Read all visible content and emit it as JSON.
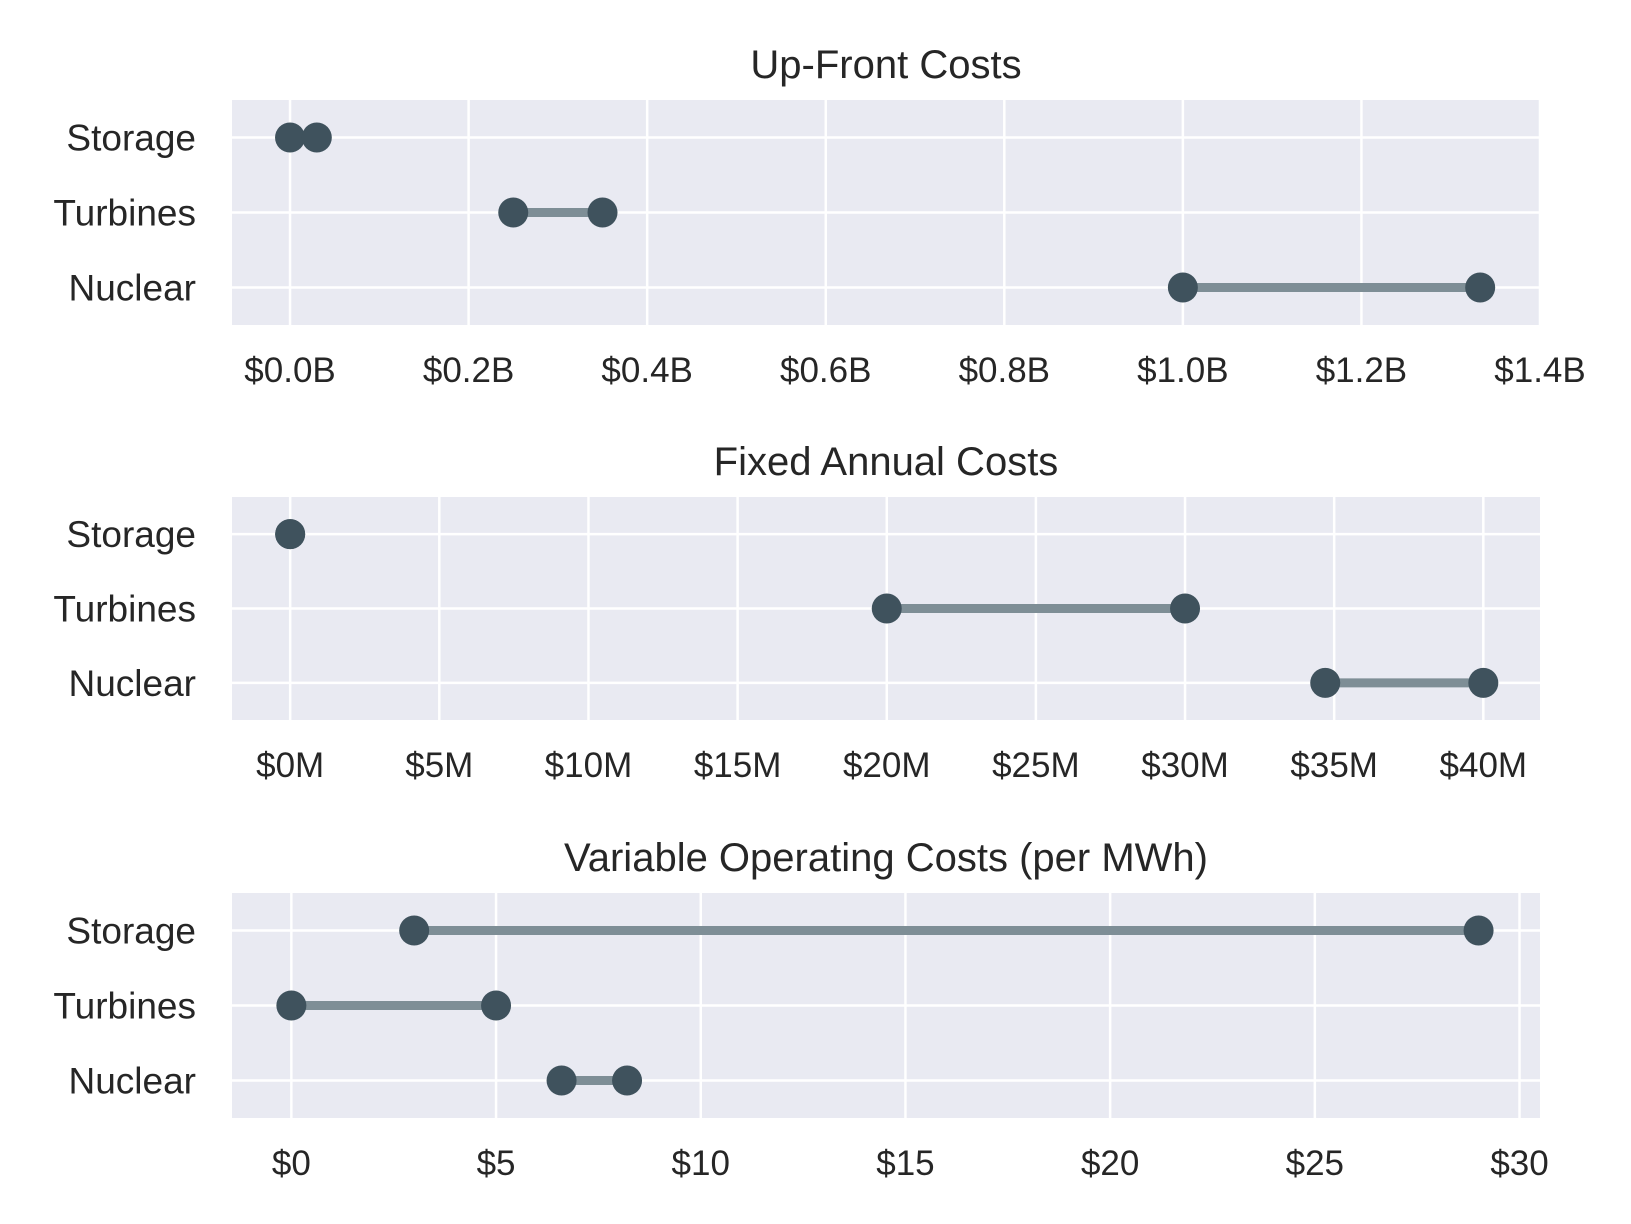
{
  "chart_data": [
    {
      "type": "dumbbell",
      "title": "Up-Front Costs",
      "categories": [
        "Storage",
        "Turbines",
        "Nuclear"
      ],
      "ranges": [
        {
          "category": "Storage",
          "low": 0.0,
          "high": 0.03
        },
        {
          "category": "Turbines",
          "low": 0.25,
          "high": 0.35
        },
        {
          "category": "Nuclear",
          "low": 1.0,
          "high": 1.333
        }
      ],
      "xlim": [
        -0.065,
        1.4
      ],
      "xticks": [
        0.0,
        0.2,
        0.4,
        0.6,
        0.8,
        1.0,
        1.2,
        1.4
      ],
      "xtick_labels": [
        "$0.0B",
        "$0.2B",
        "$0.4B",
        "$0.6B",
        "$0.8B",
        "$1.0B",
        "$1.2B",
        "$1.4B"
      ],
      "grid": true
    },
    {
      "type": "dumbbell",
      "title": "Fixed Annual Costs",
      "categories": [
        "Storage",
        "Turbines",
        "Nuclear"
      ],
      "ranges": [
        {
          "category": "Storage",
          "low": 0,
          "high": 0
        },
        {
          "category": "Turbines",
          "low": 20,
          "high": 30
        },
        {
          "category": "Nuclear",
          "low": 34.7,
          "high": 40
        }
      ],
      "xlim": [
        -1.95,
        41.9
      ],
      "xticks": [
        0,
        5,
        10,
        15,
        20,
        25,
        30,
        35,
        40
      ],
      "xtick_labels": [
        "$0M",
        "$5M",
        "$10M",
        "$15M",
        "$20M",
        "$25M",
        "$30M",
        "$35M",
        "$40M"
      ],
      "grid": true
    },
    {
      "type": "dumbbell",
      "title": "Variable Operating Costs (per MWh)",
      "categories": [
        "Storage",
        "Turbines",
        "Nuclear"
      ],
      "ranges": [
        {
          "category": "Storage",
          "low": 3.0,
          "high": 29.0
        },
        {
          "category": "Turbines",
          "low": 0.0,
          "high": 5.0
        },
        {
          "category": "Nuclear",
          "low": 6.6,
          "high": 8.2
        }
      ],
      "xlim": [
        -1.45,
        30.5
      ],
      "xticks": [
        0,
        5,
        10,
        15,
        20,
        25,
        30
      ],
      "xtick_labels": [
        "$0",
        "$5",
        "$10",
        "$15",
        "$20",
        "$25",
        "$30"
      ],
      "grid": true
    }
  ],
  "colors": {
    "plot_background": "#e9eaf2",
    "grid": "#ffffff",
    "dot": "#3f525d",
    "range_line": "#7e8e96",
    "text": "#262626"
  }
}
